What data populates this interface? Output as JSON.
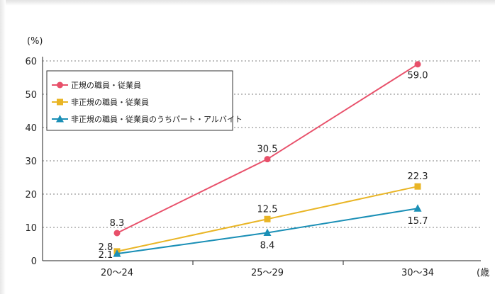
{
  "chart_data": {
    "type": "line",
    "y_unit_label": "(%)",
    "x_unit_label": "(歳",
    "categories": [
      "20～24",
      "25～29",
      "30～34"
    ],
    "ylim": [
      0,
      60
    ],
    "yticks": [
      0,
      10,
      20,
      30,
      40,
      50,
      60
    ],
    "grid": true,
    "legend_placement": "top-left",
    "series": [
      {
        "name": "正規の職員・従業員",
        "values": [
          8.3,
          30.5,
          59.0
        ],
        "labels": [
          "8.3",
          "30.5",
          "59.0"
        ],
        "color": "#e8506a",
        "marker": "circle"
      },
      {
        "name": "非正規の職員・従業員",
        "values": [
          2.8,
          12.5,
          22.3
        ],
        "labels": [
          "2.8",
          "12.5",
          "22.3"
        ],
        "color": "#e9b525",
        "marker": "square"
      },
      {
        "name": "非正規の職員・従業員のうちパート・アルバイト",
        "values": [
          2.1,
          8.4,
          15.7
        ],
        "labels": [
          "2.1",
          "8.4",
          "15.7"
        ],
        "color": "#1a8fb6",
        "marker": "triangle"
      }
    ]
  }
}
